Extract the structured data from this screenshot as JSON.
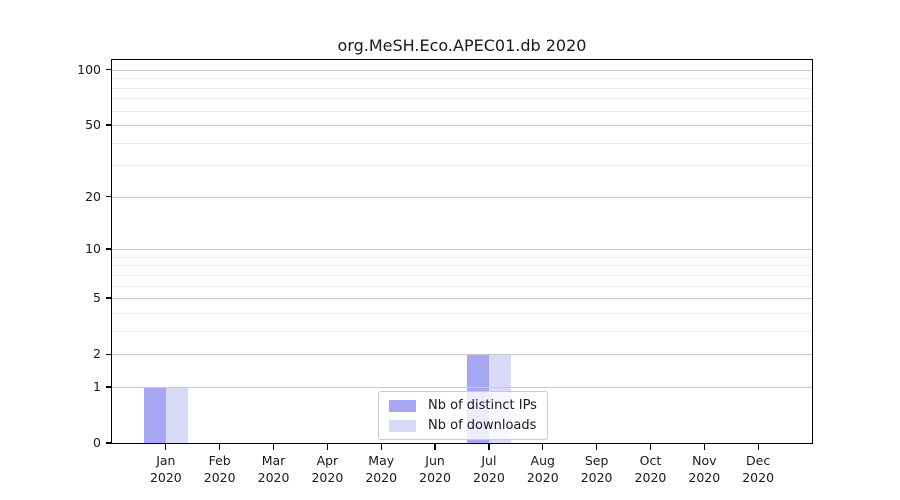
{
  "chart_data": {
    "type": "bar",
    "title": "org.MeSH.Eco.APEC01.db 2020",
    "categories": [
      "Jan",
      "Feb",
      "Mar",
      "Apr",
      "May",
      "Jun",
      "Jul",
      "Aug",
      "Sep",
      "Oct",
      "Nov",
      "Dec"
    ],
    "category_sublabel": "2020",
    "series": [
      {
        "name": "Nb of distinct IPs",
        "color": "#a7a7f4",
        "values": [
          1,
          0,
          0,
          0,
          0,
          0,
          2,
          0,
          0,
          0,
          0,
          0
        ]
      },
      {
        "name": "Nb of downloads",
        "color": "#d9d9f8",
        "values": [
          1,
          0,
          0,
          0,
          0,
          0,
          2,
          0,
          0,
          0,
          0,
          0
        ]
      }
    ],
    "yscale": "log1p",
    "ylim": [
      0,
      113
    ],
    "yticks": [
      0,
      1,
      2,
      5,
      10,
      20,
      50,
      100
    ],
    "minor_yticks": [
      3,
      4,
      6,
      7,
      8,
      9,
      30,
      40,
      60,
      70,
      80,
      90
    ],
    "xlabel": "",
    "ylabel": "",
    "grid": "horizontal",
    "legend_position": "bottom-center-inside"
  }
}
